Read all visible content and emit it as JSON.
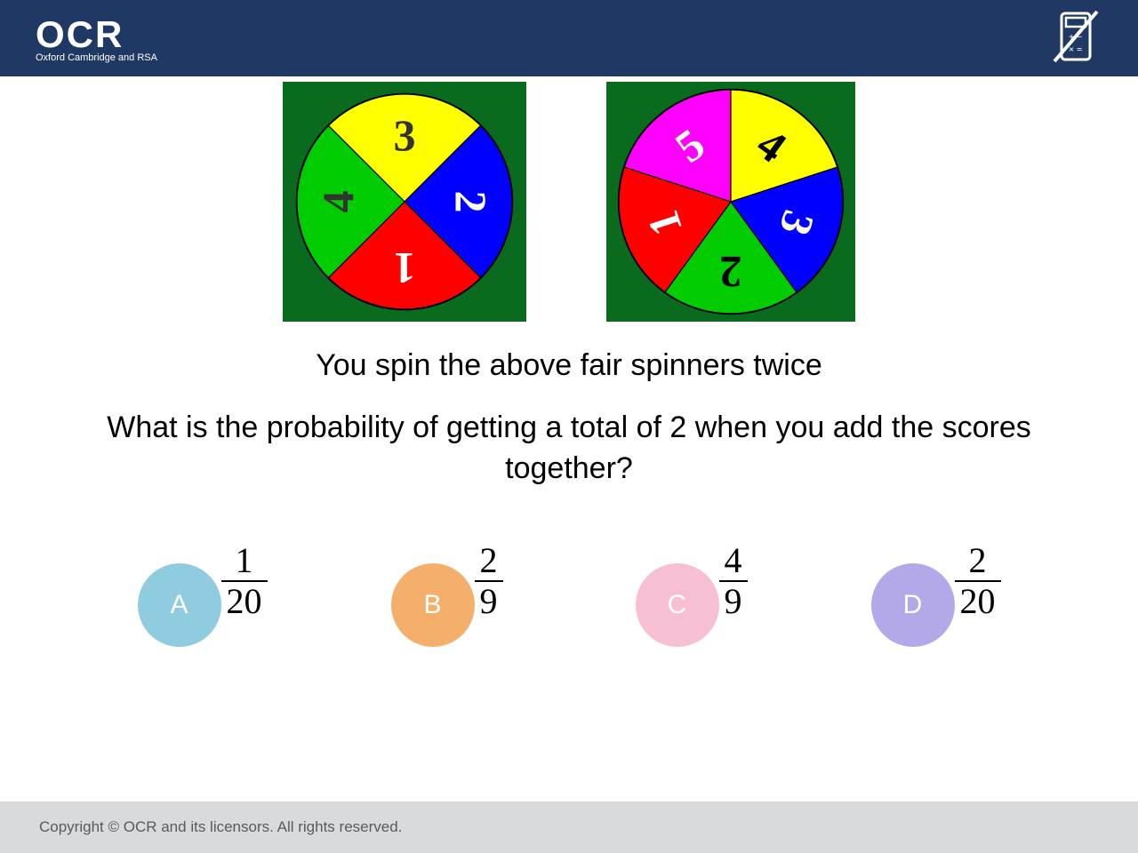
{
  "header": {
    "logo_main": "OCR",
    "logo_sub": "Oxford Cambridge and RSA"
  },
  "spinners": {
    "box_bg": "#0a6b1f",
    "four": {
      "radius": 126,
      "sectors": [
        {
          "label": "3",
          "color": "#ffff00",
          "text_color": "#333333",
          "start": 45,
          "end": 135
        },
        {
          "label": "2",
          "color": "#0000ff",
          "text_color": "#ffffff",
          "start": -45,
          "end": 45
        },
        {
          "label": "1",
          "color": "#ff0000",
          "text_color": "#ffffff",
          "start": 225,
          "end": 315
        },
        {
          "label": "4",
          "color": "#00cc00",
          "text_color": "#333333",
          "start": 135,
          "end": 225
        }
      ]
    },
    "five": {
      "radius": 130,
      "sectors": [
        {
          "label": "5",
          "color": "#ff00ff",
          "text_color": "#ffffff",
          "start": 90,
          "end": 162
        },
        {
          "label": "4",
          "color": "#ffff00",
          "text_color": "#000000",
          "start": 18,
          "end": 90
        },
        {
          "label": "3",
          "color": "#0000ff",
          "text_color": "#ffffff",
          "start": 306,
          "end": 378
        },
        {
          "label": "2",
          "color": "#00cc00",
          "text_color": "#000000",
          "start": 234,
          "end": 306
        },
        {
          "label": "1",
          "color": "#ff0000",
          "text_color": "#ffffff",
          "start": 162,
          "end": 234
        }
      ]
    }
  },
  "question": {
    "line1": "You spin the above fair spinners twice",
    "line2": "What is the probability of getting a total of 2 when you add the scores together?"
  },
  "answers": [
    {
      "letter": "A",
      "color": "#8fcce0",
      "numerator": "1",
      "denominator": "20"
    },
    {
      "letter": "B",
      "color": "#f4b06b",
      "numerator": "2",
      "denominator": "9"
    },
    {
      "letter": "C",
      "color": "#f7bfd3",
      "numerator": "4",
      "denominator": "9"
    },
    {
      "letter": "D",
      "color": "#b3a8e8",
      "numerator": "2",
      "denominator": "20"
    }
  ],
  "footer": {
    "copyright": "Copyright © OCR and its licensors. All rights reserved."
  }
}
